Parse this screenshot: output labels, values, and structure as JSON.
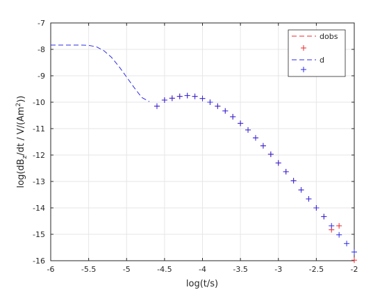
{
  "chart_data": {
    "type": "line",
    "xlabel": "log(t/s)",
    "ylabel": "log(dB_z/dt / V/(Am^2))",
    "xlim": [
      -6,
      -2
    ],
    "ylim": [
      -16,
      -7
    ],
    "x_ticks": [
      -6,
      -5.5,
      -5,
      -4.5,
      -4,
      -3.5,
      -3,
      -2.5,
      -2
    ],
    "y_ticks": [
      -16,
      -15,
      -14,
      -13,
      -12,
      -11,
      -10,
      -9,
      -8,
      -7
    ],
    "x_tick_labels": [
      "-6",
      "-5.5",
      "-5",
      "-4.5",
      "-4",
      "-3.5",
      "-3",
      "-2.5",
      "-2"
    ],
    "y_tick_labels": [
      "-16",
      "-15",
      "-14",
      "-13",
      "-12",
      "-11",
      "-10",
      "-9",
      "-8",
      "-7"
    ],
    "grid": true,
    "legend_position": "top-right",
    "colors": {
      "dobs": "#e8282b",
      "d": "#2b2be8"
    },
    "series": [
      {
        "name": "dobs",
        "style": "dashed-line-with-plus-markers",
        "line": [],
        "markers": [
          [
            -4.6,
            -10.15
          ],
          [
            -4.5,
            -9.92
          ],
          [
            -4.4,
            -9.85
          ],
          [
            -4.3,
            -9.78
          ],
          [
            -4.2,
            -9.75
          ],
          [
            -4.1,
            -9.78
          ],
          [
            -4.0,
            -9.86
          ],
          [
            -3.9,
            -10.0
          ],
          [
            -3.8,
            -10.15
          ],
          [
            -3.7,
            -10.33
          ],
          [
            -3.6,
            -10.55
          ],
          [
            -3.5,
            -10.8
          ],
          [
            -3.4,
            -11.05
          ],
          [
            -3.3,
            -11.35
          ],
          [
            -3.2,
            -11.65
          ],
          [
            -3.1,
            -11.97
          ],
          [
            -3.0,
            -12.3
          ],
          [
            -2.9,
            -12.63
          ],
          [
            -2.8,
            -12.97
          ],
          [
            -2.7,
            -13.32
          ],
          [
            -2.6,
            -13.66
          ],
          [
            -2.5,
            -14.0
          ],
          [
            -2.4,
            -14.33
          ],
          [
            -2.3,
            -14.83
          ],
          [
            -2.2,
            -14.68
          ],
          [
            -2.0,
            -15.98
          ]
        ]
      },
      {
        "name": "d",
        "style": "dashed-line-with-plus-markers",
        "line": [
          [
            -6.0,
            -7.84
          ],
          [
            -5.8,
            -7.84
          ],
          [
            -5.6,
            -7.84
          ],
          [
            -5.5,
            -7.85
          ],
          [
            -5.4,
            -7.9
          ],
          [
            -5.3,
            -8.05
          ],
          [
            -5.2,
            -8.3
          ],
          [
            -5.1,
            -8.65
          ],
          [
            -5.0,
            -9.05
          ],
          [
            -4.9,
            -9.45
          ],
          [
            -4.8,
            -9.82
          ],
          [
            -4.7,
            -9.98
          ]
        ],
        "markers": [
          [
            -4.6,
            -10.15
          ],
          [
            -4.5,
            -9.92
          ],
          [
            -4.4,
            -9.85
          ],
          [
            -4.3,
            -9.78
          ],
          [
            -4.2,
            -9.75
          ],
          [
            -4.1,
            -9.78
          ],
          [
            -4.0,
            -9.86
          ],
          [
            -3.9,
            -10.0
          ],
          [
            -3.8,
            -10.15
          ],
          [
            -3.7,
            -10.33
          ],
          [
            -3.6,
            -10.55
          ],
          [
            -3.5,
            -10.8
          ],
          [
            -3.4,
            -11.05
          ],
          [
            -3.3,
            -11.35
          ],
          [
            -3.2,
            -11.65
          ],
          [
            -3.1,
            -11.97
          ],
          [
            -3.0,
            -12.3
          ],
          [
            -2.9,
            -12.63
          ],
          [
            -2.8,
            -12.97
          ],
          [
            -2.7,
            -13.32
          ],
          [
            -2.6,
            -13.66
          ],
          [
            -2.5,
            -14.0
          ],
          [
            -2.4,
            -14.33
          ],
          [
            -2.3,
            -14.68
          ],
          [
            -2.2,
            -15.02
          ],
          [
            -2.1,
            -15.35
          ],
          [
            -2.0,
            -15.67
          ]
        ]
      }
    ]
  }
}
